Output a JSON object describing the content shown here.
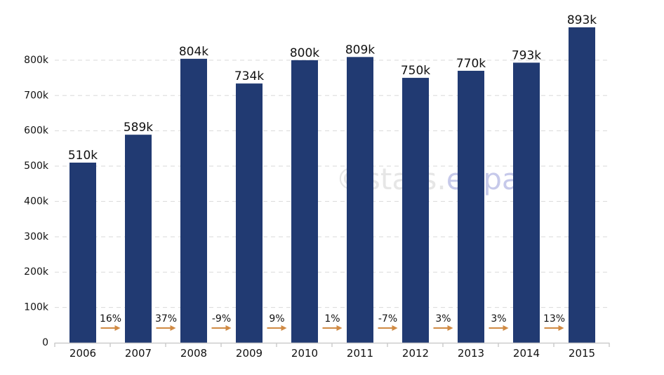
{
  "chart_data": {
    "type": "bar",
    "categories": [
      "2006",
      "2007",
      "2008",
      "2009",
      "2010",
      "2011",
      "2012",
      "2013",
      "2014",
      "2015"
    ],
    "values": [
      510,
      589,
      804,
      734,
      800,
      809,
      750,
      770,
      793,
      893
    ],
    "value_labels": [
      "510k",
      "589k",
      "804k",
      "734k",
      "800k",
      "809k",
      "750k",
      "770k",
      "793k",
      "893k"
    ],
    "growth_labels": [
      "16%",
      "37%",
      "-9%",
      "9%",
      "1%",
      "-7%",
      "3%",
      "3%",
      "13%"
    ],
    "yticks": [
      0,
      100,
      200,
      300,
      400,
      500,
      600,
      700,
      800
    ],
    "ytick_labels": [
      "0",
      "100k",
      "200k",
      "300k",
      "400k",
      "500k",
      "600k",
      "700k",
      "800k"
    ],
    "ylim": [
      0,
      893
    ],
    "grid": true,
    "watermark": {
      "prefix": "©stats.",
      "suffix": "ehpa"
    },
    "colors": {
      "bar": "#213a72",
      "arrow": "#d08a43",
      "watermark_prefix": "#e6e6e6",
      "watermark_suffix": "#c6c9ea"
    },
    "title": "",
    "xlabel": "",
    "ylabel": ""
  }
}
